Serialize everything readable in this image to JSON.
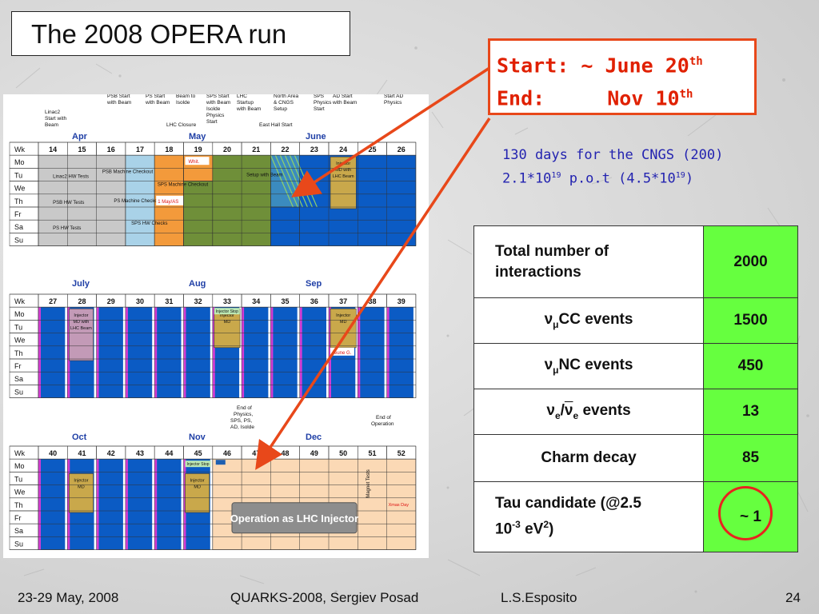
{
  "slide": {
    "title": "The 2008 OPERA run",
    "start_label": "Start: ~ June 20",
    "start_sup": "th",
    "end_label": "End:",
    "end_date": "Nov  10",
    "end_sup": "th",
    "cngs_line1": "130 days for the CNGS (200)",
    "cngs_line2_a": "2.1*10",
    "cngs_line2_b": "19",
    "cngs_line2_c": " p.o.t (4.5*10",
    "cngs_line2_d": "19",
    "cngs_line2_e": ")"
  },
  "calendar": {
    "day_labels": [
      "Mo",
      "Tu",
      "We",
      "Th",
      "Fr",
      "Sa",
      "Su"
    ],
    "block1": {
      "months": [
        "Apr",
        "May",
        "June"
      ],
      "weeks": [
        "14",
        "15",
        "16",
        "17",
        "18",
        "19",
        "20",
        "21",
        "22",
        "23",
        "24",
        "25",
        "26"
      ],
      "notes": [
        "Linac2 Start with Beam",
        "PSB Start with Beam",
        "PS Start with Beam",
        "Beam to Isolde",
        "SPS Start with Beam Isolde Physics Start",
        "LHC Startup with Beam",
        "North Area & CNGS Setup",
        "SPS Physics Start",
        "AD Start with Beam",
        "Start AD Physics",
        "LHC Closure",
        "East Hall Start"
      ],
      "cells": [
        "Linac2 HW Tests",
        "PSB HW Tests",
        "PS HW Tests",
        "PSB Machine Checkout",
        "PS Machine Checkout",
        "SPS HW Checks",
        "SPS Machine Checkout",
        "1 May/AS",
        "Whit.",
        "Setup with Beam",
        "Injector MD with LHC Beam"
      ]
    },
    "block2": {
      "months": [
        "July",
        "Aug",
        "Sep"
      ],
      "weeks": [
        "27",
        "28",
        "29",
        "30",
        "31",
        "32",
        "33",
        "34",
        "35",
        "36",
        "37",
        "38",
        "39"
      ],
      "cells": [
        "Injector MD with LHC Beam",
        "Injector Stop",
        "Injector MD",
        "Jeune G."
      ]
    },
    "block3": {
      "months": [
        "Oct",
        "Nov",
        "Dec"
      ],
      "weeks": [
        "40",
        "41",
        "42",
        "43",
        "44",
        "45",
        "46",
        "47",
        "48",
        "49",
        "50",
        "51",
        "52"
      ],
      "notes": [
        "End of Physics, SPS, PS, AD, Isolde",
        "End of Operation"
      ],
      "cells": [
        "Injector MD",
        "Injector Stop",
        "Magnet Tests",
        "Xmas Day"
      ],
      "banner": "Operation as LHC Injector"
    }
  },
  "table": {
    "rows": [
      {
        "label": "Total number of interactions",
        "value": "2000"
      },
      {
        "label_greek": "ν",
        "label_sub": "μ",
        "label_rest": "CC events",
        "value": "1500"
      },
      {
        "label_greek": "ν",
        "label_sub": "μ",
        "label_rest": "NC events",
        "value": "450"
      },
      {
        "label_a": "ν",
        "label_a_sub": "e",
        "label_sep": "/",
        "label_b": "ν",
        "label_b_sub": "e",
        "label_rest": " events",
        "value": "13"
      },
      {
        "label": "Charm decay",
        "value": "85"
      },
      {
        "label_a": "Tau candidate (@2.5",
        "label_b": "10",
        "label_b_sup": "-3",
        "label_c": " eV",
        "label_c_sup": "2",
        "label_d": ")",
        "value": "~ 1"
      }
    ]
  },
  "footer": {
    "date": "23-29 May, 2008",
    "conference": "QUARKS-2008, Sergiev Posad",
    "author": "L.S.Esposito",
    "page": "24"
  },
  "colors": {
    "green_cell": "#66ff3f",
    "accent_red": "#e8481a",
    "cngs_blue": "#2323b0",
    "cal_blue": "#0b5bc4",
    "cal_green": "#6f8f39",
    "cal_orange": "#f39a3b",
    "cal_peach": "#fbd9b5"
  }
}
